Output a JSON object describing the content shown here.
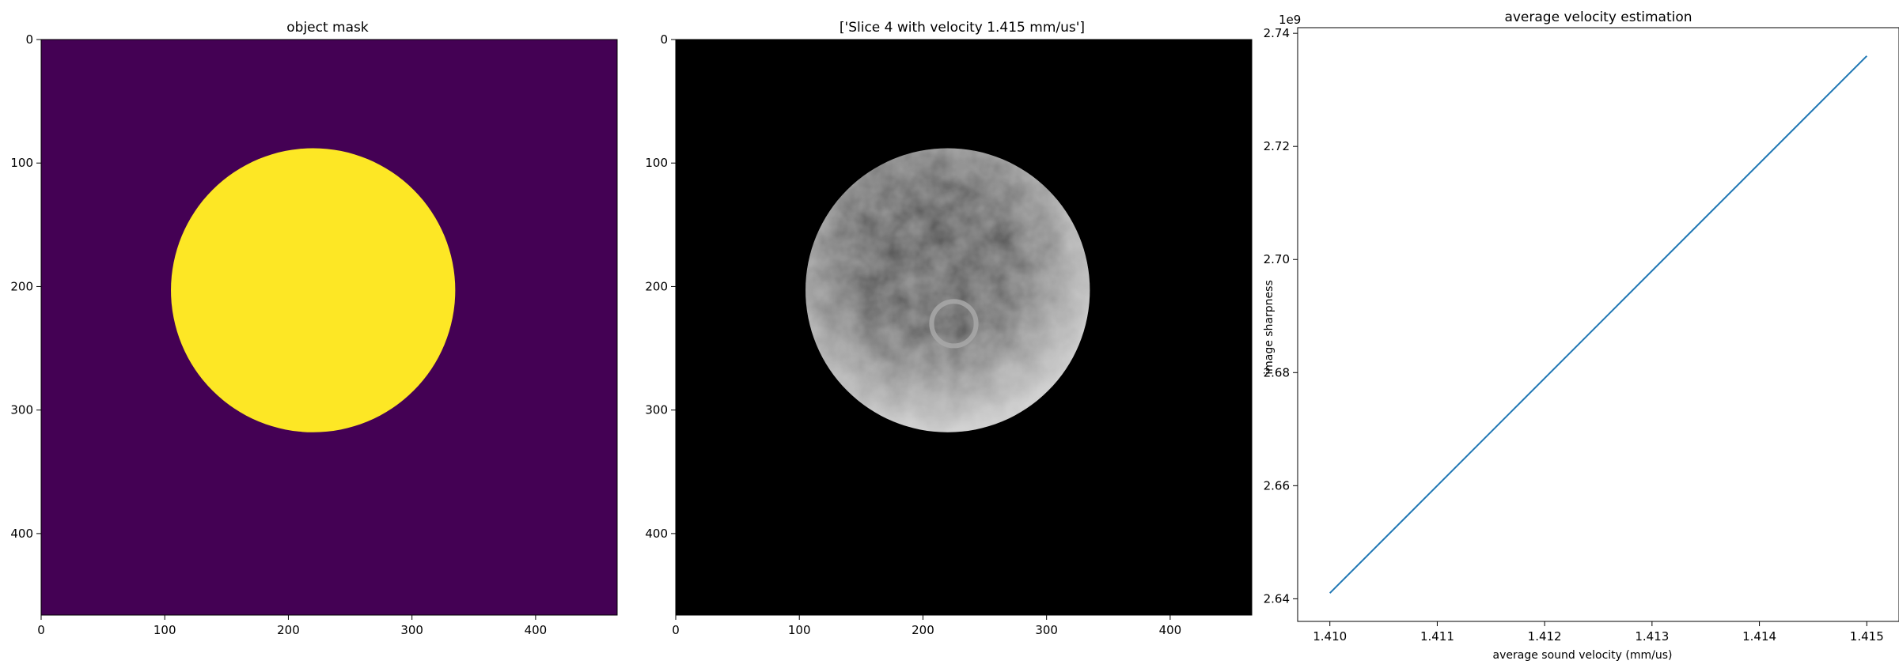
{
  "chart_data": [
    {
      "type": "heatmap",
      "title": "object mask",
      "xlim": [
        0,
        466
      ],
      "ylim": [
        466,
        0
      ],
      "xticks": [
        0,
        100,
        200,
        300,
        400
      ],
      "yticks": [
        0,
        100,
        200,
        300,
        400
      ],
      "colormap": "viridis",
      "background_color": "#440154",
      "mask_color": "#fde725",
      "mask_circle": {
        "center_x": 220,
        "center_y": 203,
        "radius": 115
      }
    },
    {
      "type": "heatmap",
      "title": "['Slice 4 with velocity 1.415 mm/us']",
      "xlim": [
        0,
        466
      ],
      "ylim": [
        466,
        0
      ],
      "xticks": [
        0,
        100,
        200,
        300,
        400
      ],
      "yticks": [
        0,
        100,
        200,
        300,
        400
      ],
      "colormap": "gray",
      "background_color": "#000000",
      "disk": {
        "center_x": 220,
        "center_y": 203,
        "radius": 115
      },
      "ring": {
        "center_x": 225,
        "center_y": 230,
        "radius": 18
      }
    },
    {
      "type": "line",
      "title": "average velocity estimation",
      "xlabel": "average sound velocity (mm/us)",
      "ylabel": "image sharpness",
      "offset_text": "1e9",
      "xlim": [
        1.4097,
        1.4153
      ],
      "ylim": [
        2.636,
        2.741
      ],
      "xticks": [
        "1.410",
        "1.411",
        "1.412",
        "1.413",
        "1.414",
        "1.415"
      ],
      "yticks": [
        "2.64",
        "2.66",
        "2.68",
        "2.70",
        "2.72",
        "2.74"
      ],
      "series": [
        {
          "x": [
            1.41,
            1.415
          ],
          "y": [
            2.641,
            2.736
          ],
          "color": "#1f77b4"
        }
      ]
    }
  ]
}
